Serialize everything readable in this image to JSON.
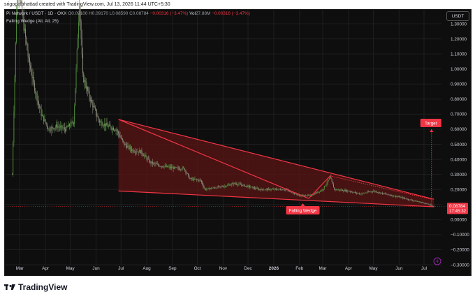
{
  "header": {
    "created_text": "srigopalbhattad created with TradingView.com, Jul 13, 2026 11:44 UTC+5:30"
  },
  "legend": {
    "symbol": "Pi Network / USDT · 1D · OKX",
    "open": "O0.09100",
    "high": "H0.09170",
    "low": "L0.08590",
    "close": "C0.08784",
    "change": "−0.00316 (−3.47%)",
    "vol_label": "Vol",
    "vol_value": "27.88M",
    "vol_change": "−0.00316 (−3.47%)",
    "indicator": "Falling Wedge (All, All, 25)"
  },
  "currency_button": "USDT",
  "colors": {
    "background": "#0e0e0e",
    "grid": "#1f1f1f",
    "up_candle": "#4f8a3a",
    "down_candle": "#8a8a7a",
    "wedge_line": "#f23645",
    "wedge_fill": "#5a1414",
    "label_bg": "#f23645"
  },
  "chart_data": {
    "type": "candlestick",
    "x_axis_ticks": [
      "Mar",
      "Apr",
      "May",
      "Jun",
      "Jul",
      "Aug",
      "Sep",
      "Oct",
      "Nov",
      "Dec",
      "2026",
      "Feb",
      "Mar",
      "Apr",
      "May",
      "Jun",
      "Jul"
    ],
    "y_axis_ticks": [
      "1.30000",
      "1.20000",
      "1.10000",
      "1.00000",
      "0.90000",
      "0.80000",
      "0.70000",
      "0.60000",
      "0.50000",
      "0.40000",
      "0.30000",
      "0.20000",
      "0.10000",
      "0.00000",
      "−0.10000",
      "−0.20000",
      "−0.30000"
    ],
    "ylim": [
      -0.3,
      1.35
    ],
    "price_series": [
      {
        "date": "2025-02-20",
        "price": 0.3
      },
      {
        "date": "2025-02-26",
        "price": 1.6
      },
      {
        "date": "2025-03-05",
        "price": 1.32
      },
      {
        "date": "2025-03-12",
        "price": 1.05
      },
      {
        "date": "2025-03-20",
        "price": 0.85
      },
      {
        "date": "2025-03-27",
        "price": 0.7
      },
      {
        "date": "2025-04-05",
        "price": 0.6
      },
      {
        "date": "2025-04-15",
        "price": 0.62
      },
      {
        "date": "2025-04-25",
        "price": 0.6
      },
      {
        "date": "2025-05-05",
        "price": 0.65
      },
      {
        "date": "2025-05-12",
        "price": 1.45
      },
      {
        "date": "2025-05-16",
        "price": 0.95
      },
      {
        "date": "2025-05-25",
        "price": 0.8
      },
      {
        "date": "2025-06-05",
        "price": 0.65
      },
      {
        "date": "2025-06-15",
        "price": 0.62
      },
      {
        "date": "2025-06-25",
        "price": 0.6
      },
      {
        "date": "2025-07-05",
        "price": 0.5
      },
      {
        "date": "2025-07-15",
        "price": 0.46
      },
      {
        "date": "2025-07-25",
        "price": 0.45
      },
      {
        "date": "2025-08-05",
        "price": 0.38
      },
      {
        "date": "2025-08-15",
        "price": 0.36
      },
      {
        "date": "2025-08-25",
        "price": 0.35
      },
      {
        "date": "2025-09-05",
        "price": 0.34
      },
      {
        "date": "2025-09-15",
        "price": 0.34
      },
      {
        "date": "2025-09-22",
        "price": 0.27
      },
      {
        "date": "2025-10-05",
        "price": 0.26
      },
      {
        "date": "2025-10-10",
        "price": 0.2
      },
      {
        "date": "2025-10-20",
        "price": 0.21
      },
      {
        "date": "2025-11-01",
        "price": 0.22
      },
      {
        "date": "2025-11-15",
        "price": 0.24
      },
      {
        "date": "2025-12-01",
        "price": 0.22
      },
      {
        "date": "2025-12-15",
        "price": 0.2
      },
      {
        "date": "2026-01-01",
        "price": 0.2
      },
      {
        "date": "2026-01-15",
        "price": 0.2
      },
      {
        "date": "2026-02-01",
        "price": 0.16
      },
      {
        "date": "2026-02-15",
        "price": 0.16
      },
      {
        "date": "2026-03-01",
        "price": 0.2
      },
      {
        "date": "2026-03-10",
        "price": 0.28
      },
      {
        "date": "2026-03-15",
        "price": 0.2
      },
      {
        "date": "2026-04-01",
        "price": 0.19
      },
      {
        "date": "2026-04-15",
        "price": 0.17
      },
      {
        "date": "2026-05-01",
        "price": 0.19
      },
      {
        "date": "2026-05-15",
        "price": 0.17
      },
      {
        "date": "2026-06-01",
        "price": 0.15
      },
      {
        "date": "2026-06-15",
        "price": 0.13
      },
      {
        "date": "2026-07-01",
        "price": 0.11
      },
      {
        "date": "2026-07-13",
        "price": 0.08784
      }
    ],
    "pattern": {
      "label": "Falling Wedge",
      "upper_line": [
        {
          "date": "2025-06-28",
          "price": 0.665
        },
        {
          "date": "2026-07-13",
          "price": 0.135
        }
      ],
      "lower_line": [
        {
          "date": "2025-06-28",
          "price": 0.19
        },
        {
          "date": "2026-07-13",
          "price": 0.085
        }
      ],
      "inner_line_1": [
        {
          "date": "2025-06-28",
          "price": 0.665
        },
        {
          "date": "2026-02-12",
          "price": 0.14
        }
      ],
      "inner_line_2": [
        {
          "date": "2026-02-12",
          "price": 0.14
        },
        {
          "date": "2026-03-10",
          "price": 0.29
        }
      ],
      "target_label": "Target",
      "target_price": 0.6
    },
    "last_price": "0.08784",
    "countdown": "17:45:32"
  }
}
